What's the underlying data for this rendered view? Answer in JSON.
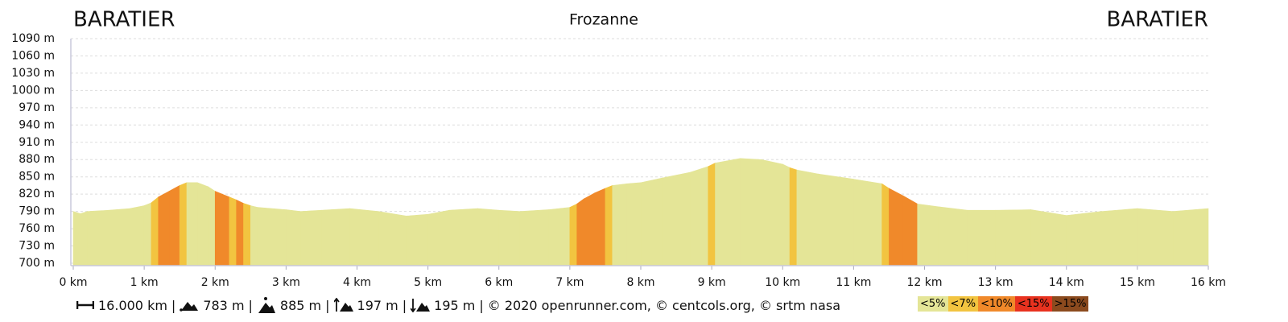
{
  "chart_data": {
    "type": "area",
    "title": "Frozanne",
    "start_label": "BARATIER",
    "end_label": "BARATIER",
    "x": [
      0,
      0.1,
      0.2,
      0.5,
      0.8,
      1.0,
      1.1,
      1.2,
      1.35,
      1.5,
      1.6,
      1.75,
      1.9,
      2.0,
      2.2,
      2.3,
      2.4,
      2.5,
      2.6,
      3.0,
      3.2,
      3.5,
      3.9,
      4.3,
      4.7,
      5.0,
      5.3,
      5.7,
      6.0,
      6.3,
      6.7,
      7.0,
      7.1,
      7.2,
      7.35,
      7.5,
      7.6,
      7.8,
      8.0,
      8.3,
      8.7,
      8.95,
      9.05,
      9.4,
      9.7,
      10.0,
      10.1,
      10.2,
      10.5,
      11.0,
      11.4,
      11.5,
      11.7,
      11.9,
      12.2,
      12.6,
      13.0,
      13.5,
      14.0,
      14.5,
      15.0,
      15.5,
      16.0
    ],
    "y": [
      790,
      786,
      790,
      792,
      795,
      800,
      805,
      815,
      825,
      835,
      840,
      840,
      833,
      825,
      815,
      810,
      804,
      800,
      797,
      793,
      790,
      792,
      795,
      790,
      782,
      785,
      792,
      795,
      792,
      790,
      793,
      797,
      803,
      812,
      822,
      830,
      835,
      838,
      840,
      848,
      858,
      868,
      874,
      882,
      880,
      872,
      866,
      862,
      855,
      846,
      838,
      830,
      817,
      803,
      798,
      792,
      792,
      793,
      783,
      790,
      795,
      790,
      795
    ],
    "slope_class": [
      0,
      0,
      0,
      0,
      0,
      0,
      1,
      2,
      2,
      1,
      0,
      0,
      0,
      2,
      1,
      2,
      1,
      0,
      0,
      0,
      0,
      0,
      0,
      0,
      0,
      0,
      0,
      0,
      0,
      0,
      0,
      1,
      2,
      2,
      2,
      1,
      0,
      0,
      0,
      0,
      0,
      1,
      0,
      0,
      0,
      0,
      1,
      0,
      0,
      0,
      1,
      2,
      2,
      0,
      0,
      0,
      0,
      0,
      0,
      0,
      0,
      0
    ],
    "xlim": [
      0,
      16
    ],
    "xticks": [
      {
        "value": 0,
        "label": "0 km"
      },
      {
        "value": 1,
        "label": "1 km"
      },
      {
        "value": 2,
        "label": "2 km"
      },
      {
        "value": 3,
        "label": "3 km"
      },
      {
        "value": 4,
        "label": "4 km"
      },
      {
        "value": 5,
        "label": "5 km"
      },
      {
        "value": 6,
        "label": "6 km"
      },
      {
        "value": 7,
        "label": "7 km"
      },
      {
        "value": 8,
        "label": "8 km"
      },
      {
        "value": 9,
        "label": "9 km"
      },
      {
        "value": 10,
        "label": "10 km"
      },
      {
        "value": 11,
        "label": "11 km"
      },
      {
        "value": 12,
        "label": "12 km"
      },
      {
        "value": 13,
        "label": "13 km"
      },
      {
        "value": 14,
        "label": "14 km"
      },
      {
        "value": 15,
        "label": "15 km"
      },
      {
        "value": 16,
        "label": "16 km"
      }
    ],
    "ylim": [
      700,
      1090
    ],
    "yticks": [
      {
        "value": 700,
        "label": "700 m"
      },
      {
        "value": 730,
        "label": "730 m"
      },
      {
        "value": 760,
        "label": "760 m"
      },
      {
        "value": 790,
        "label": "790 m"
      },
      {
        "value": 820,
        "label": "820 m"
      },
      {
        "value": 850,
        "label": "850 m"
      },
      {
        "value": 880,
        "label": "880 m"
      },
      {
        "value": 910,
        "label": "910 m"
      },
      {
        "value": 940,
        "label": "940 m"
      },
      {
        "value": 970,
        "label": "970 m"
      },
      {
        "value": 1000,
        "label": "1000 m"
      },
      {
        "value": 1030,
        "label": "1030 m"
      },
      {
        "value": 1060,
        "label": "1060 m"
      },
      {
        "value": 1090,
        "label": "1090 m"
      }
    ],
    "grid": true,
    "legend": [
      {
        "label": "<5%",
        "color": "#e4e597"
      },
      {
        "label": "<7%",
        "color": "#f2c440"
      },
      {
        "label": "<10%",
        "color": "#f0892a"
      },
      {
        "label": "<15%",
        "color": "#e8321f"
      },
      {
        "label": ">15%",
        "color": "#8b4a1e"
      }
    ],
    "stats": {
      "distance": "16.000 km",
      "min_altitude": "783 m",
      "max_altitude": "885 m",
      "ascent": "197 m",
      "descent": "195 m",
      "separator": "|",
      "credits": "© 2020 openrunner.com, © centcols.org, © srtm nasa"
    }
  }
}
